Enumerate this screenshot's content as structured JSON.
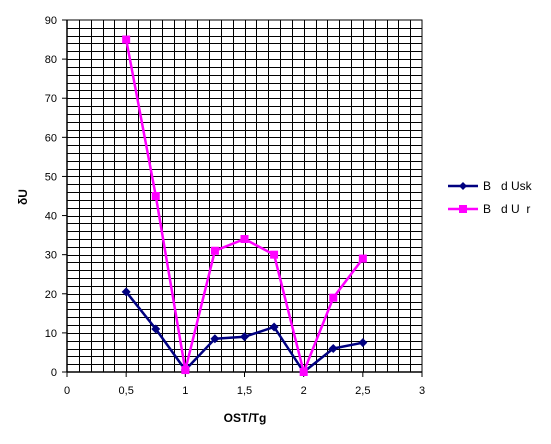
{
  "chart_data": {
    "type": "line",
    "xlabel": "OST/Tg",
    "ylabel": "δU",
    "xlim": [
      0,
      3
    ],
    "ylim": [
      0,
      90
    ],
    "x_ticks": [
      "0",
      "0,5",
      "1",
      "1,5",
      "2",
      "2,5",
      "3"
    ],
    "y_ticks": [
      "0",
      "10",
      "20",
      "30",
      "40",
      "50",
      "60",
      "70",
      "80",
      "90"
    ],
    "grid": true,
    "legend_position": "right",
    "series": [
      {
        "name": "B   d Usk",
        "color": "#000080",
        "marker": "diamond",
        "x": [
          0.5,
          0.75,
          1,
          1.25,
          1.5,
          1.75,
          2,
          2.25,
          2.5
        ],
        "values": [
          20.5,
          11,
          0.5,
          8.5,
          9,
          11.5,
          0,
          6,
          7.5
        ]
      },
      {
        "name": "B   d U  r",
        "color": "#ff00ff",
        "marker": "square",
        "x": [
          0.5,
          0.75,
          1,
          1.25,
          1.5,
          1.75,
          2,
          2.25,
          2.5
        ],
        "values": [
          85,
          45,
          0.5,
          31,
          34,
          30,
          0,
          19,
          29
        ]
      }
    ]
  }
}
